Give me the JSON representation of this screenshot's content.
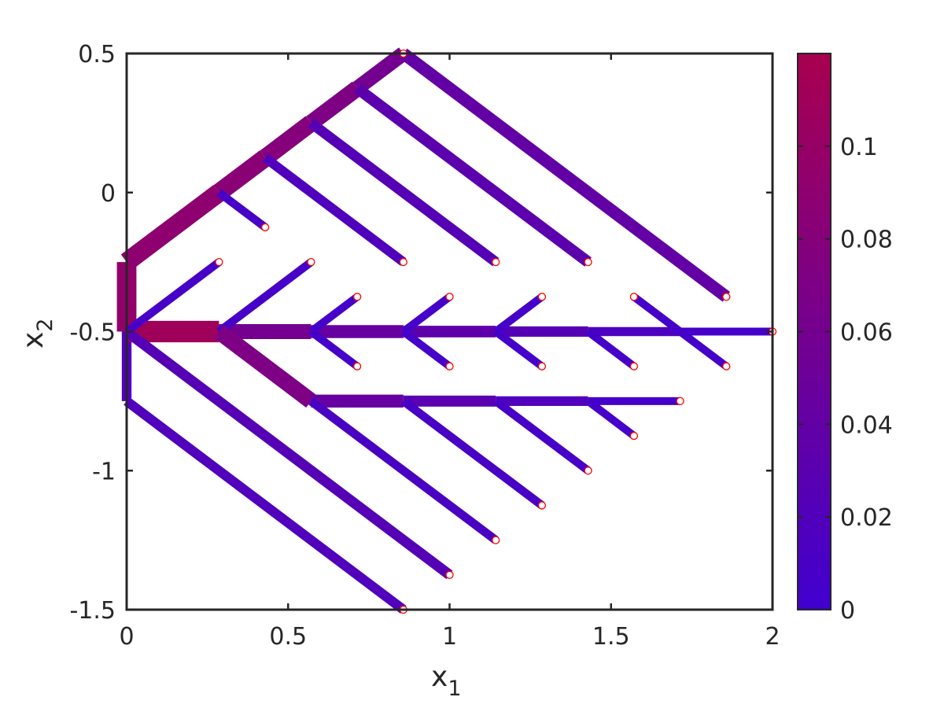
{
  "chart_data": {
    "type": "line",
    "xlabel": "x",
    "xlabel_sub": "1",
    "ylabel": "x",
    "ylabel_sub": "2",
    "xlim": [
      0,
      2
    ],
    "ylim": [
      -1.5,
      0.5
    ],
    "xticks": [
      0,
      0.5,
      1,
      1.5,
      2
    ],
    "xtick_labels": [
      "0",
      "0.5",
      "1",
      "1.5",
      "2"
    ],
    "yticks": [
      0.5,
      0,
      -0.5,
      -1,
      -1.5
    ],
    "ytick_labels": [
      "0.5",
      "0",
      "-0.5",
      "-1",
      "-1.5"
    ],
    "grid": false,
    "colorbar": {
      "range": [
        0,
        0.12
      ],
      "ticks": [
        0,
        0.02,
        0.04,
        0.06,
        0.08,
        0.1
      ],
      "tick_labels": [
        "0",
        "0.02",
        "0.04",
        "0.06",
        "0.08",
        "0.1"
      ],
      "color_low": "#4000d0",
      "color_high": "#a8004f"
    },
    "segments": [
      {
        "x1": 0.0,
        "y1": -0.25,
        "x2": 0.0,
        "y2": -0.5,
        "value": 0.095
      },
      {
        "x1": 0.0,
        "y1": -0.75,
        "x2": 0.0,
        "y2": -0.5,
        "value": 0.02
      },
      {
        "x1": 0.0,
        "y1": -0.25,
        "x2": 0.286,
        "y2": 0.0,
        "value": 0.09
      },
      {
        "x1": 0.286,
        "y1": 0.0,
        "x2": 0.429,
        "y2": 0.125,
        "value": 0.085
      },
      {
        "x1": 0.429,
        "y1": 0.125,
        "x2": 0.571,
        "y2": 0.25,
        "value": 0.08
      },
      {
        "x1": 0.571,
        "y1": 0.25,
        "x2": 0.714,
        "y2": 0.375,
        "value": 0.072
      },
      {
        "x1": 0.714,
        "y1": 0.375,
        "x2": 0.857,
        "y2": 0.5,
        "value": 0.06
      },
      {
        "x1": 0.857,
        "y1": 0.5,
        "x2": 1.857,
        "y2": -0.375,
        "value": 0.04
      },
      {
        "x1": 0.714,
        "y1": 0.375,
        "x2": 1.429,
        "y2": -0.25,
        "value": 0.032
      },
      {
        "x1": 0.571,
        "y1": 0.25,
        "x2": 1.143,
        "y2": -0.25,
        "value": 0.025
      },
      {
        "x1": 0.429,
        "y1": 0.125,
        "x2": 0.857,
        "y2": -0.25,
        "value": 0.018
      },
      {
        "x1": 0.286,
        "y1": 0.0,
        "x2": 0.429,
        "y2": -0.125,
        "value": 0.008
      },
      {
        "x1": 0.0,
        "y1": -0.5,
        "x2": 0.286,
        "y2": -0.5,
        "value": 0.11
      },
      {
        "x1": 0.286,
        "y1": -0.5,
        "x2": 0.571,
        "y2": -0.5,
        "value": 0.06
      },
      {
        "x1": 0.571,
        "y1": -0.5,
        "x2": 0.857,
        "y2": -0.5,
        "value": 0.045
      },
      {
        "x1": 0.857,
        "y1": -0.5,
        "x2": 1.143,
        "y2": -0.5,
        "value": 0.035
      },
      {
        "x1": 1.143,
        "y1": -0.5,
        "x2": 1.429,
        "y2": -0.5,
        "value": 0.025
      },
      {
        "x1": 1.429,
        "y1": -0.5,
        "x2": 1.714,
        "y2": -0.5,
        "value": 0.015
      },
      {
        "x1": 1.714,
        "y1": -0.5,
        "x2": 2.0,
        "y2": -0.5,
        "value": 0.006
      },
      {
        "x1": 0.0,
        "y1": -0.5,
        "x2": 0.286,
        "y2": -0.25,
        "value": 0.008
      },
      {
        "x1": 0.286,
        "y1": -0.5,
        "x2": 0.571,
        "y2": -0.25,
        "value": 0.008
      },
      {
        "x1": 0.571,
        "y1": -0.5,
        "x2": 0.714,
        "y2": -0.375,
        "value": 0.006
      },
      {
        "x1": 0.571,
        "y1": -0.5,
        "x2": 0.714,
        "y2": -0.625,
        "value": 0.006
      },
      {
        "x1": 0.857,
        "y1": -0.5,
        "x2": 1.0,
        "y2": -0.375,
        "value": 0.006
      },
      {
        "x1": 0.857,
        "y1": -0.5,
        "x2": 1.0,
        "y2": -0.625,
        "value": 0.006
      },
      {
        "x1": 1.143,
        "y1": -0.5,
        "x2": 1.286,
        "y2": -0.375,
        "value": 0.006
      },
      {
        "x1": 1.143,
        "y1": -0.5,
        "x2": 1.286,
        "y2": -0.625,
        "value": 0.006
      },
      {
        "x1": 1.429,
        "y1": -0.5,
        "x2": 1.571,
        "y2": -0.625,
        "value": 0.006
      },
      {
        "x1": 1.571,
        "y1": -0.375,
        "x2": 1.857,
        "y2": -0.625,
        "value": 0.006
      },
      {
        "x1": 0.286,
        "y1": -0.5,
        "x2": 0.571,
        "y2": -0.75,
        "value": 0.07
      },
      {
        "x1": 0.571,
        "y1": -0.75,
        "x2": 0.857,
        "y2": -0.75,
        "value": 0.045
      },
      {
        "x1": 0.857,
        "y1": -0.75,
        "x2": 1.143,
        "y2": -0.75,
        "value": 0.03
      },
      {
        "x1": 1.143,
        "y1": -0.75,
        "x2": 1.429,
        "y2": -0.75,
        "value": 0.02
      },
      {
        "x1": 1.429,
        "y1": -0.75,
        "x2": 1.714,
        "y2": -0.75,
        "value": 0.006
      },
      {
        "x1": 1.429,
        "y1": -0.75,
        "x2": 1.571,
        "y2": -0.875,
        "value": 0.006
      },
      {
        "x1": 1.143,
        "y1": -0.75,
        "x2": 1.429,
        "y2": -1.0,
        "value": 0.008
      },
      {
        "x1": 0.857,
        "y1": -0.75,
        "x2": 1.286,
        "y2": -1.125,
        "value": 0.01
      },
      {
        "x1": 0.571,
        "y1": -0.75,
        "x2": 1.143,
        "y2": -1.25,
        "value": 0.012
      },
      {
        "x1": 0.0,
        "y1": -0.5,
        "x2": 1.0,
        "y2": -1.375,
        "value": 0.025
      },
      {
        "x1": 0.0,
        "y1": -0.75,
        "x2": 0.857,
        "y2": -1.5,
        "value": 0.02
      }
    ],
    "endpoints": [
      {
        "x": 0.857,
        "y": 0.5
      },
      {
        "x": 0.429,
        "y": -0.125
      },
      {
        "x": 0.857,
        "y": -0.25
      },
      {
        "x": 1.143,
        "y": -0.25
      },
      {
        "x": 1.429,
        "y": -0.25
      },
      {
        "x": 1.857,
        "y": -0.375
      },
      {
        "x": 0.286,
        "y": -0.25
      },
      {
        "x": 0.571,
        "y": -0.25
      },
      {
        "x": 0.714,
        "y": -0.375
      },
      {
        "x": 1.0,
        "y": -0.375
      },
      {
        "x": 1.286,
        "y": -0.375
      },
      {
        "x": 1.571,
        "y": -0.375
      },
      {
        "x": 2.0,
        "y": -0.5
      },
      {
        "x": 0.714,
        "y": -0.625
      },
      {
        "x": 1.0,
        "y": -0.625
      },
      {
        "x": 1.286,
        "y": -0.625
      },
      {
        "x": 1.571,
        "y": -0.625
      },
      {
        "x": 1.857,
        "y": -0.625
      },
      {
        "x": 1.714,
        "y": -0.75
      },
      {
        "x": 1.571,
        "y": -0.875
      },
      {
        "x": 1.429,
        "y": -1.0
      },
      {
        "x": 1.286,
        "y": -1.125
      },
      {
        "x": 1.143,
        "y": -1.25
      },
      {
        "x": 1.0,
        "y": -1.375
      },
      {
        "x": 0.857,
        "y": -1.5
      }
    ]
  }
}
